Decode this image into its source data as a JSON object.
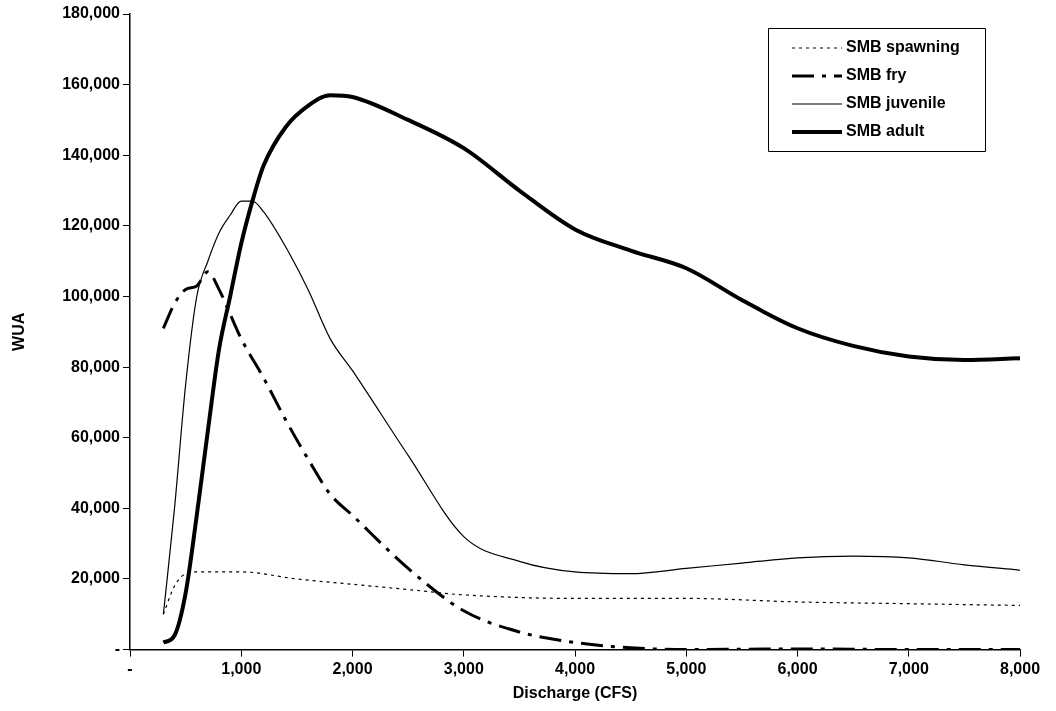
{
  "chart_data": {
    "type": "line",
    "xlabel": "Discharge (CFS)",
    "ylabel": "WUA",
    "xlim": [
      0,
      8000
    ],
    "xticks": [
      {
        "value": 0,
        "label": "-"
      },
      {
        "value": 1000,
        "label": "1,000"
      },
      {
        "value": 2000,
        "label": "2,000"
      },
      {
        "value": 3000,
        "label": "3,000"
      },
      {
        "value": 4000,
        "label": "4,000"
      },
      {
        "value": 5000,
        "label": "5,000"
      },
      {
        "value": 6000,
        "label": "6,000"
      },
      {
        "value": 7000,
        "label": "7,000"
      },
      {
        "value": 8000,
        "label": "8,000"
      }
    ],
    "ylim": [
      0,
      180000
    ],
    "yticks": [
      {
        "value": 0,
        "label": "-"
      },
      {
        "value": 20000,
        "label": "20,000"
      },
      {
        "value": 40000,
        "label": "40,000"
      },
      {
        "value": 60000,
        "label": "60,000"
      },
      {
        "value": 80000,
        "label": "80,000"
      },
      {
        "value": 100000,
        "label": "100,000"
      },
      {
        "value": 120000,
        "label": "120,000"
      },
      {
        "value": 140000,
        "label": "140,000"
      },
      {
        "value": 160000,
        "label": "160,000"
      },
      {
        "value": 180000,
        "label": "180,000"
      }
    ],
    "grid": false,
    "legend": "top right",
    "marker": "none",
    "series": [
      {
        "name": "SMB spawning",
        "color": "#000000",
        "line_style": "dotted",
        "x": [
          300,
          400,
          500,
          600,
          1000,
          1500,
          2000,
          2500,
          3000,
          4000,
          5000,
          6000,
          7000,
          8000
        ],
        "values": [
          10000,
          18000,
          21500,
          22000,
          22000,
          20000,
          18500,
          17000,
          15500,
          14500,
          14500,
          13500,
          13000,
          12500
        ]
      },
      {
        "name": "SMB fry",
        "color": "#000000",
        "line_style": "dashed",
        "x": [
          300,
          400,
          500,
          600,
          700,
          800,
          900,
          1000,
          1200,
          1400,
          1600,
          1800,
          2000,
          2500,
          3000,
          3500,
          4000,
          4500,
          5000,
          6000,
          7000,
          8000
        ],
        "values": [
          91000,
          98000,
          102000,
          103000,
          107000,
          102000,
          95000,
          88000,
          77000,
          65000,
          54000,
          44000,
          38000,
          23000,
          11000,
          5000,
          2000,
          500,
          0,
          200,
          0,
          0
        ]
      },
      {
        "name": "SMB juvenile",
        "color": "#000000",
        "line_style": "solid",
        "x": [
          300,
          400,
          500,
          600,
          700,
          800,
          900,
          1000,
          1100,
          1200,
          1400,
          1600,
          1800,
          2000,
          2500,
          3000,
          3500,
          4000,
          4500,
          5000,
          5500,
          6000,
          6500,
          7000,
          7500,
          8000
        ],
        "values": [
          10000,
          40000,
          75000,
          100000,
          110000,
          118000,
          123000,
          127000,
          127000,
          124000,
          114000,
          102000,
          88000,
          79000,
          55000,
          32000,
          25000,
          22000,
          21500,
          23000,
          24500,
          26000,
          26500,
          26000,
          24000,
          22500
        ]
      },
      {
        "name": "SMB adult",
        "color": "#000000",
        "line_style": "solid",
        "x": [
          300,
          400,
          500,
          600,
          700,
          800,
          900,
          1000,
          1100,
          1200,
          1400,
          1600,
          1800,
          2000,
          2500,
          3000,
          3500,
          4000,
          4500,
          5000,
          5500,
          6000,
          6500,
          7000,
          7500,
          8000
        ],
        "values": [
          2000,
          4000,
          16000,
          38000,
          62000,
          85000,
          100000,
          115000,
          127000,
          137000,
          148000,
          154000,
          157000,
          156500,
          150000,
          142000,
          130000,
          119000,
          113000,
          108000,
          99000,
          91000,
          86000,
          83000,
          82000,
          82500
        ]
      }
    ]
  }
}
